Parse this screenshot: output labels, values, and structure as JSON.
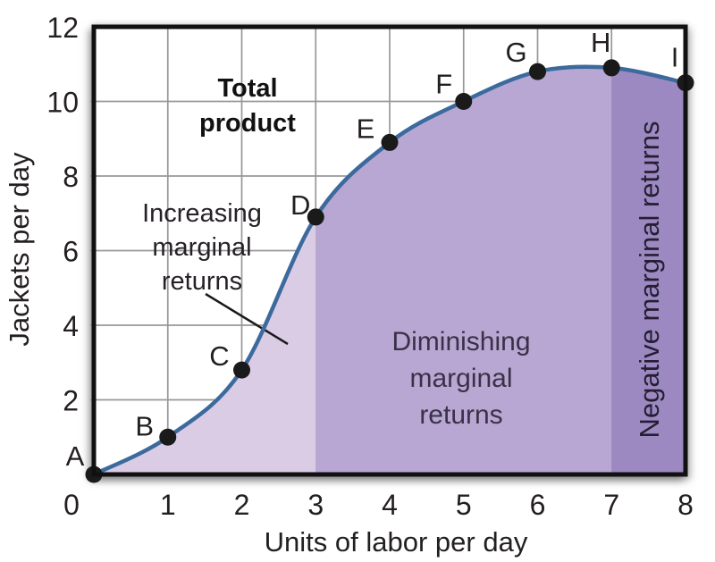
{
  "chart_data": {
    "type": "area",
    "title": "Total\nproduct",
    "xlabel": "Units of labor per day",
    "ylabel": "Jackets per day",
    "xlim": [
      0,
      8
    ],
    "ylim": [
      0,
      12
    ],
    "x_ticks": [
      0,
      1,
      2,
      3,
      4,
      5,
      6,
      7,
      8
    ],
    "y_ticks": [
      2,
      4,
      6,
      8,
      10,
      12
    ],
    "grid": true,
    "legend": "none",
    "line_color": "#3c6a9d",
    "point_color": "#1a1a1a",
    "grid_color": "#989898",
    "border_color": "#111111",
    "text_color": "#231f20",
    "points": [
      {
        "label": "A",
        "x": 0,
        "y": 0
      },
      {
        "label": "B",
        "x": 1,
        "y": 1
      },
      {
        "label": "C",
        "x": 2,
        "y": 2.8
      },
      {
        "label": "D",
        "x": 3,
        "y": 6.9
      },
      {
        "label": "E",
        "x": 4,
        "y": 8.9
      },
      {
        "label": "F",
        "x": 5,
        "y": 10
      },
      {
        "label": "G",
        "x": 6,
        "y": 10.8
      },
      {
        "label": "H",
        "x": 7,
        "y": 10.9
      },
      {
        "label": "I",
        "x": 8,
        "y": 10.5
      }
    ],
    "regions": [
      {
        "name": "increasing-marginal-returns",
        "label": "Increasing\nmarginal\nreturns",
        "x_range": [
          0,
          3
        ],
        "fill": "#dbcce5"
      },
      {
        "name": "diminishing-marginal-returns",
        "label": "Diminishing\nmarginal\nreturns",
        "x_range": [
          3,
          7
        ],
        "fill": "#b7a7d2"
      },
      {
        "name": "negative-marginal-returns",
        "label": "Negative marginal returns",
        "x_range": [
          7,
          8
        ],
        "fill": "#9c89c1"
      }
    ]
  }
}
